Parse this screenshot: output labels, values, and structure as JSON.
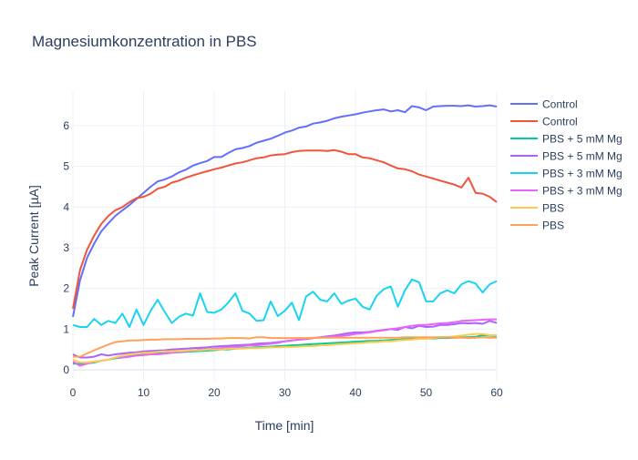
{
  "chart_data": {
    "type": "line",
    "title": "Magnesiumkonzentration in PBS",
    "xlabel": "Time [min]",
    "ylabel": "Peak Current [µA]",
    "xlim": [
      0,
      60
    ],
    "ylim": [
      -0.27,
      6.85
    ],
    "xticks": [
      0,
      10,
      20,
      30,
      40,
      50,
      60
    ],
    "yticks": [
      0,
      1,
      2,
      3,
      4,
      5,
      6
    ],
    "grid": true,
    "legend_position": "right",
    "x": [
      0,
      1,
      2,
      3,
      4,
      5,
      6,
      7,
      8,
      9,
      10,
      11,
      12,
      13,
      14,
      15,
      16,
      17,
      18,
      19,
      20,
      21,
      22,
      23,
      24,
      25,
      26,
      27,
      28,
      29,
      30,
      31,
      32,
      33,
      34,
      35,
      36,
      37,
      38,
      39,
      40,
      41,
      42,
      43,
      44,
      45,
      46,
      47,
      48,
      49,
      50,
      51,
      52,
      53,
      54,
      55,
      56,
      57,
      58,
      59,
      60
    ],
    "series": [
      {
        "name": "Control",
        "color": "#636efa",
        "values": [
          1.3,
          2.2,
          2.75,
          3.1,
          3.4,
          3.6,
          3.78,
          3.92,
          4.05,
          4.2,
          4.35,
          4.5,
          4.63,
          4.68,
          4.75,
          4.85,
          4.92,
          5.02,
          5.08,
          5.13,
          5.23,
          5.23,
          5.33,
          5.42,
          5.45,
          5.5,
          5.58,
          5.63,
          5.68,
          5.75,
          5.83,
          5.88,
          5.95,
          5.98,
          6.05,
          6.08,
          6.12,
          6.18,
          6.22,
          6.25,
          6.28,
          6.32,
          6.35,
          6.38,
          6.4,
          6.35,
          6.38,
          6.33,
          6.48,
          6.45,
          6.38,
          6.47,
          6.48,
          6.49,
          6.49,
          6.48,
          6.5,
          6.47,
          6.48,
          6.5,
          6.47
        ]
      },
      {
        "name": "Control",
        "color": "#EF553B",
        "values": [
          1.5,
          2.45,
          2.95,
          3.3,
          3.58,
          3.78,
          3.92,
          4.0,
          4.12,
          4.22,
          4.25,
          4.33,
          4.45,
          4.5,
          4.6,
          4.65,
          4.72,
          4.78,
          4.83,
          4.88,
          4.93,
          4.97,
          5.02,
          5.07,
          5.1,
          5.15,
          5.2,
          5.22,
          5.27,
          5.29,
          5.3,
          5.35,
          5.38,
          5.39,
          5.39,
          5.39,
          5.38,
          5.4,
          5.36,
          5.3,
          5.3,
          5.22,
          5.2,
          5.15,
          5.1,
          5.02,
          4.95,
          4.93,
          4.88,
          4.8,
          4.75,
          4.7,
          4.65,
          4.6,
          4.55,
          4.48,
          4.72,
          4.35,
          4.33,
          4.25,
          4.12
        ]
      },
      {
        "name": "PBS + 5 mM Mg",
        "color": "#00cc96",
        "values": [
          0.15,
          0.15,
          0.15,
          0.18,
          0.22,
          0.25,
          0.28,
          0.3,
          0.33,
          0.35,
          0.37,
          0.38,
          0.4,
          0.41,
          0.42,
          0.43,
          0.44,
          0.45,
          0.46,
          0.47,
          0.48,
          0.5,
          0.5,
          0.52,
          0.53,
          0.54,
          0.55,
          0.56,
          0.57,
          0.58,
          0.59,
          0.6,
          0.61,
          0.62,
          0.63,
          0.64,
          0.65,
          0.66,
          0.67,
          0.68,
          0.69,
          0.7,
          0.71,
          0.71,
          0.72,
          0.73,
          0.74,
          0.75,
          0.76,
          0.76,
          0.77,
          0.77,
          0.78,
          0.78,
          0.79,
          0.8,
          0.8,
          0.81,
          0.85,
          0.84,
          0.83
        ]
      },
      {
        "name": "PBS + 5 mM Mg",
        "color": "#ab63fa",
        "values": [
          0.38,
          0.3,
          0.3,
          0.32,
          0.38,
          0.35,
          0.38,
          0.4,
          0.42,
          0.43,
          0.45,
          0.46,
          0.47,
          0.48,
          0.5,
          0.51,
          0.52,
          0.53,
          0.54,
          0.55,
          0.57,
          0.58,
          0.59,
          0.6,
          0.61,
          0.62,
          0.64,
          0.65,
          0.66,
          0.68,
          0.7,
          0.72,
          0.74,
          0.76,
          0.78,
          0.8,
          0.82,
          0.84,
          0.87,
          0.9,
          0.92,
          0.92,
          0.93,
          0.96,
          0.98,
          1.0,
          0.98,
          1.05,
          1.02,
          1.08,
          1.05,
          1.06,
          1.1,
          1.1,
          1.12,
          1.15,
          1.14,
          1.15,
          1.13,
          1.2,
          1.15
        ]
      },
      {
        "name": "PBS + 3 mM Mg",
        "color": "#19d3f3",
        "values": [
          1.1,
          1.05,
          1.05,
          1.25,
          1.1,
          1.2,
          1.15,
          1.38,
          1.05,
          1.48,
          1.1,
          1.45,
          1.72,
          1.42,
          1.15,
          1.3,
          1.38,
          1.33,
          1.88,
          1.42,
          1.4,
          1.48,
          1.65,
          1.88,
          1.45,
          1.38,
          1.2,
          1.22,
          1.68,
          1.32,
          1.45,
          1.65,
          1.22,
          1.8,
          1.92,
          1.72,
          1.68,
          1.88,
          1.62,
          1.7,
          1.75,
          1.55,
          1.48,
          1.82,
          1.98,
          2.05,
          1.55,
          1.95,
          2.22,
          2.15,
          1.68,
          1.68,
          1.88,
          1.95,
          1.88,
          2.1,
          2.18,
          2.12,
          1.9,
          2.1,
          2.18
        ]
      },
      {
        "name": "PBS + 3 mM Mg",
        "color": "#e763fa",
        "values": [
          0.2,
          0.1,
          0.15,
          0.2,
          0.22,
          0.25,
          0.3,
          0.3,
          0.32,
          0.35,
          0.36,
          0.38,
          0.38,
          0.4,
          0.42,
          0.44,
          0.45,
          0.47,
          0.5,
          0.5,
          0.52,
          0.53,
          0.55,
          0.56,
          0.58,
          0.6,
          0.6,
          0.62,
          0.64,
          0.66,
          0.7,
          0.72,
          0.74,
          0.75,
          0.78,
          0.79,
          0.8,
          0.82,
          0.83,
          0.85,
          0.88,
          0.9,
          0.92,
          0.95,
          0.97,
          1.0,
          1.02,
          1.05,
          1.08,
          1.1,
          1.1,
          1.12,
          1.14,
          1.15,
          1.17,
          1.2,
          1.21,
          1.22,
          1.23,
          1.24,
          1.24
        ]
      },
      {
        "name": "PBS",
        "color": "#FECB52",
        "values": [
          0.25,
          0.18,
          0.18,
          0.2,
          0.22,
          0.25,
          0.3,
          0.35,
          0.38,
          0.4,
          0.42,
          0.42,
          0.44,
          0.45,
          0.45,
          0.46,
          0.47,
          0.48,
          0.48,
          0.5,
          0.5,
          0.5,
          0.52,
          0.52,
          0.52,
          0.53,
          0.53,
          0.54,
          0.55,
          0.55,
          0.56,
          0.56,
          0.57,
          0.58,
          0.58,
          0.6,
          0.6,
          0.62,
          0.63,
          0.64,
          0.65,
          0.66,
          0.68,
          0.68,
          0.7,
          0.7,
          0.72,
          0.73,
          0.74,
          0.76,
          0.76,
          0.78,
          0.8,
          0.8,
          0.82,
          0.84,
          0.86,
          0.88,
          0.88,
          0.85,
          0.85
        ]
      },
      {
        "name": "PBS",
        "color": "#FFA15A",
        "values": [
          0.32,
          0.32,
          0.4,
          0.48,
          0.55,
          0.62,
          0.68,
          0.7,
          0.72,
          0.72,
          0.73,
          0.74,
          0.74,
          0.75,
          0.75,
          0.75,
          0.76,
          0.76,
          0.76,
          0.76,
          0.77,
          0.77,
          0.78,
          0.78,
          0.78,
          0.77,
          0.8,
          0.8,
          0.78,
          0.78,
          0.78,
          0.78,
          0.78,
          0.78,
          0.79,
          0.79,
          0.79,
          0.79,
          0.79,
          0.79,
          0.79,
          0.79,
          0.79,
          0.79,
          0.79,
          0.79,
          0.79,
          0.8,
          0.8,
          0.8,
          0.8,
          0.8,
          0.8,
          0.8,
          0.79,
          0.79,
          0.78,
          0.79,
          0.8,
          0.79,
          0.79
        ]
      }
    ]
  }
}
